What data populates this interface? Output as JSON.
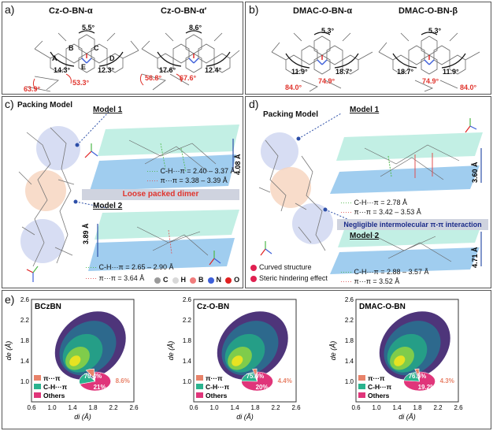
{
  "panels": {
    "a": {
      "label": "a)",
      "mol1": {
        "title": "Cz-O-BN-α",
        "angle_top": "5.5°",
        "angle_left": "14.3°",
        "angle_right": "12.3°",
        "angle_red1": "63.9°",
        "angle_red2": "53.3°"
      },
      "mol2": {
        "title": "Cz-O-BN-α′",
        "angle_top": "8.6°",
        "angle_left": "17.6°",
        "angle_right": "12.4°",
        "angle_red1": "56.8°",
        "angle_red2": "67.6°"
      },
      "rings": [
        "A",
        "B",
        "C",
        "D",
        "E"
      ]
    },
    "b": {
      "label": "b)",
      "mol1": {
        "title": "DMAC-O-BN-α",
        "angle_top": "5.3°",
        "angle_left": "11.9°",
        "angle_right": "18.7°",
        "angle_red1": "84.0°",
        "angle_red2": "74.9°"
      },
      "mol2": {
        "title": "DMAC-O-BN-β",
        "angle_top": "5.3°",
        "angle_left": "18.7°",
        "angle_right": "11.9°",
        "angle_red1": "74.9°",
        "angle_red2": "84.0°"
      }
    },
    "c": {
      "label": "c)",
      "heading": "Packing Model",
      "model1": "Model 1",
      "model1_dist": "4.08 Å",
      "model1_ch": "C-H···π = 2.40 – 3.37 Å",
      "model1_pp": "π···π = 3.38 – 3.39 Å",
      "banner": "Loose packed dimer",
      "model2": "Model 2",
      "model2_dist": "3.89 Å",
      "model2_ch": "C-H···π = 2.65 – 2.90 Å",
      "model2_pp": "π···π = 3.64 Å",
      "atoms": [
        "C",
        "H",
        "B",
        "N",
        "O"
      ],
      "atom_colors": [
        "#9a9a9a",
        "#d8d8d8",
        "#f07c7c",
        "#3d5fd9",
        "#e02020"
      ]
    },
    "d": {
      "label": "d)",
      "heading": "Packing Model",
      "model1": "Model 1",
      "model1_dist": "3.60 Å",
      "model1_ch": "C-H···π = 2.78 Å",
      "model1_pp": "π···π = 3.42 – 3.53 Å",
      "banner": "Negligible intermolecular π-π interaction",
      "model2": "Model 2",
      "model2_dist": "4.71 Å",
      "model2_ch": "C-H···π = 2.88 – 3.57 Å",
      "model2_pp": "π···π = 3.52 Å",
      "note1": "Curved structure",
      "note2": "Steric hindering effect"
    },
    "e": {
      "label": "e)",
      "legend": [
        "π···π",
        "C-H···π",
        "Others"
      ],
      "legend_colors": [
        "#e8836a",
        "#2bb38e",
        "#e0357a"
      ],
      "ylabel": "de (Å)",
      "xlabel": "di (Å)"
    }
  },
  "chart_data": [
    {
      "type": "pie",
      "title": "BCzBN",
      "categories": [
        "π···π",
        "C-H···π",
        "Others"
      ],
      "values": [
        8.6,
        21,
        70.4
      ],
      "labels": [
        "8.6%",
        "21%",
        "70.4%"
      ],
      "xticks": [
        "0.6",
        "1.0",
        "1.4",
        "1.8",
        "2.2",
        "2.6"
      ],
      "yticks": [
        "1.0",
        "1.4",
        "1.8",
        "2.2",
        "2.6"
      ],
      "xlim": [
        0.6,
        2.6
      ],
      "ylim": [
        0.6,
        2.6
      ]
    },
    {
      "type": "pie",
      "title": "Cz-O-BN",
      "categories": [
        "π···π",
        "C-H···π",
        "Others"
      ],
      "values": [
        4.4,
        20,
        75.6
      ],
      "labels": [
        "4.4%",
        "20%",
        "75.6%"
      ],
      "xticks": [
        "0.6",
        "1.0",
        "1.4",
        "1.8",
        "2.2",
        "2.6"
      ],
      "yticks": [
        "1.0",
        "1.4",
        "1.8",
        "2.2",
        "2.6"
      ],
      "xlim": [
        0.6,
        2.6
      ],
      "ylim": [
        0.6,
        2.6
      ]
    },
    {
      "type": "pie",
      "title": "DMAC-O-BN",
      "categories": [
        "π···π",
        "C-H···π",
        "Others"
      ],
      "values": [
        4.3,
        19.2,
        76.5
      ],
      "labels": [
        "4.3%",
        "19.2%",
        "76.5%"
      ],
      "xticks": [
        "0.6",
        "1.0",
        "1.4",
        "1.8",
        "2.2",
        "2.6"
      ],
      "yticks": [
        "1.0",
        "1.4",
        "1.8",
        "2.2",
        "2.6"
      ],
      "xlim": [
        0.6,
        2.6
      ],
      "ylim": [
        0.6,
        2.6
      ]
    }
  ]
}
